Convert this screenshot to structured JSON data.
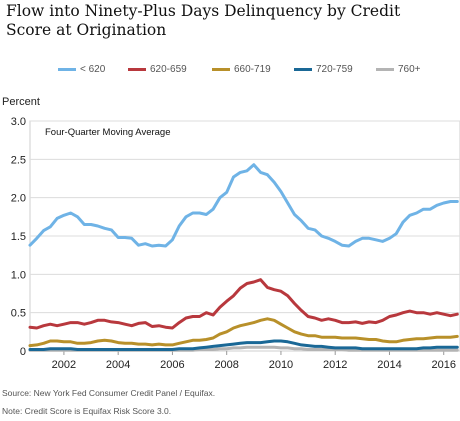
{
  "chart_data": {
    "type": "line",
    "title": "Flow into Ninety-Plus Days Delinquency by Credit Score at Origination",
    "ylabel": "Percent",
    "annotation": "Four-Quarter Moving Average",
    "ylim": [
      0,
      3.0
    ],
    "xlim": [
      2000.75,
      2016.6
    ],
    "yticks": [
      "0",
      "0.5",
      "1.0",
      "1.5",
      "2.0",
      "2.5",
      "3.0"
    ],
    "xticks": [
      "2002",
      "2004",
      "2006",
      "2008",
      "2010",
      "2012",
      "2014",
      "2016"
    ],
    "grid": true,
    "legend_position": "top",
    "x": [
      2000.75,
      2001.0,
      2001.25,
      2001.5,
      2001.75,
      2002.0,
      2002.25,
      2002.5,
      2002.75,
      2003.0,
      2003.25,
      2003.5,
      2003.75,
      2004.0,
      2004.25,
      2004.5,
      2004.75,
      2005.0,
      2005.25,
      2005.5,
      2005.75,
      2006.0,
      2006.25,
      2006.5,
      2006.75,
      2007.0,
      2007.25,
      2007.5,
      2007.75,
      2008.0,
      2008.25,
      2008.5,
      2008.75,
      2009.0,
      2009.25,
      2009.5,
      2009.75,
      2010.0,
      2010.25,
      2010.5,
      2010.75,
      2011.0,
      2011.25,
      2011.5,
      2011.75,
      2012.0,
      2012.25,
      2012.5,
      2012.75,
      2013.0,
      2013.25,
      2013.5,
      2013.75,
      2014.0,
      2014.25,
      2014.5,
      2014.75,
      2015.0,
      2015.25,
      2015.5,
      2015.75,
      2016.0,
      2016.25,
      2016.5
    ],
    "series": [
      {
        "name": "< 620",
        "color": "#6fb3e6",
        "values": [
          1.38,
          1.47,
          1.57,
          1.62,
          1.73,
          1.77,
          1.8,
          1.75,
          1.65,
          1.65,
          1.63,
          1.6,
          1.58,
          1.48,
          1.48,
          1.47,
          1.38,
          1.4,
          1.37,
          1.38,
          1.37,
          1.45,
          1.63,
          1.75,
          1.8,
          1.8,
          1.78,
          1.85,
          2.0,
          2.07,
          2.27,
          2.33,
          2.35,
          2.43,
          2.33,
          2.3,
          2.2,
          2.08,
          1.93,
          1.78,
          1.7,
          1.6,
          1.58,
          1.5,
          1.47,
          1.43,
          1.38,
          1.37,
          1.43,
          1.47,
          1.47,
          1.45,
          1.43,
          1.47,
          1.53,
          1.68,
          1.77,
          1.8,
          1.85,
          1.85,
          1.9,
          1.93,
          1.95,
          1.95
        ]
      },
      {
        "name": "620-659",
        "color": "#b8383d",
        "values": [
          0.31,
          0.3,
          0.33,
          0.35,
          0.33,
          0.35,
          0.37,
          0.37,
          0.35,
          0.37,
          0.4,
          0.4,
          0.38,
          0.37,
          0.35,
          0.33,
          0.36,
          0.37,
          0.32,
          0.33,
          0.31,
          0.3,
          0.37,
          0.43,
          0.45,
          0.45,
          0.5,
          0.47,
          0.57,
          0.65,
          0.72,
          0.82,
          0.88,
          0.9,
          0.93,
          0.83,
          0.8,
          0.78,
          0.72,
          0.62,
          0.53,
          0.45,
          0.43,
          0.4,
          0.42,
          0.4,
          0.37,
          0.37,
          0.38,
          0.36,
          0.38,
          0.37,
          0.4,
          0.45,
          0.47,
          0.5,
          0.52,
          0.5,
          0.5,
          0.48,
          0.5,
          0.48,
          0.46,
          0.48
        ]
      },
      {
        "name": "660-719",
        "color": "#b8902a",
        "values": [
          0.07,
          0.08,
          0.1,
          0.13,
          0.13,
          0.12,
          0.12,
          0.1,
          0.1,
          0.11,
          0.13,
          0.14,
          0.13,
          0.11,
          0.1,
          0.1,
          0.09,
          0.09,
          0.08,
          0.09,
          0.08,
          0.08,
          0.1,
          0.12,
          0.14,
          0.14,
          0.15,
          0.17,
          0.22,
          0.25,
          0.3,
          0.33,
          0.35,
          0.37,
          0.4,
          0.42,
          0.4,
          0.35,
          0.3,
          0.25,
          0.22,
          0.2,
          0.2,
          0.18,
          0.18,
          0.18,
          0.17,
          0.17,
          0.17,
          0.16,
          0.15,
          0.15,
          0.13,
          0.12,
          0.12,
          0.14,
          0.15,
          0.16,
          0.16,
          0.17,
          0.18,
          0.18,
          0.18,
          0.19
        ]
      },
      {
        "name": "720-759",
        "color": "#1a6896",
        "values": [
          0.02,
          0.02,
          0.02,
          0.03,
          0.03,
          0.03,
          0.03,
          0.02,
          0.02,
          0.02,
          0.02,
          0.02,
          0.02,
          0.02,
          0.02,
          0.02,
          0.02,
          0.02,
          0.02,
          0.02,
          0.02,
          0.02,
          0.03,
          0.03,
          0.03,
          0.04,
          0.05,
          0.06,
          0.07,
          0.08,
          0.09,
          0.1,
          0.11,
          0.11,
          0.11,
          0.12,
          0.13,
          0.13,
          0.12,
          0.1,
          0.08,
          0.07,
          0.06,
          0.06,
          0.05,
          0.04,
          0.04,
          0.04,
          0.04,
          0.03,
          0.03,
          0.03,
          0.03,
          0.03,
          0.03,
          0.03,
          0.03,
          0.03,
          0.04,
          0.04,
          0.05,
          0.05,
          0.05,
          0.05
        ]
      },
      {
        "name": "760+",
        "color": "#b4b4b4",
        "values": [
          0.01,
          0.01,
          0.01,
          0.01,
          0.01,
          0.01,
          0.01,
          0.01,
          0.01,
          0.01,
          0.01,
          0.01,
          0.01,
          0.01,
          0.01,
          0.01,
          0.01,
          0.01,
          0.01,
          0.01,
          0.01,
          0.01,
          0.01,
          0.01,
          0.01,
          0.02,
          0.02,
          0.02,
          0.03,
          0.03,
          0.04,
          0.04,
          0.05,
          0.05,
          0.05,
          0.05,
          0.05,
          0.04,
          0.04,
          0.03,
          0.03,
          0.02,
          0.02,
          0.02,
          0.02,
          0.02,
          0.02,
          0.01,
          0.01,
          0.01,
          0.01,
          0.01,
          0.01,
          0.01,
          0.01,
          0.01,
          0.01,
          0.01,
          0.01,
          0.01,
          0.01,
          0.01,
          0.01,
          0.01
        ]
      }
    ]
  },
  "source_note": "Source: New York Fed Consumer Credit Panel / Equifax.",
  "score_note": "Note: Credit Score is Equifax Risk Score 3.0."
}
